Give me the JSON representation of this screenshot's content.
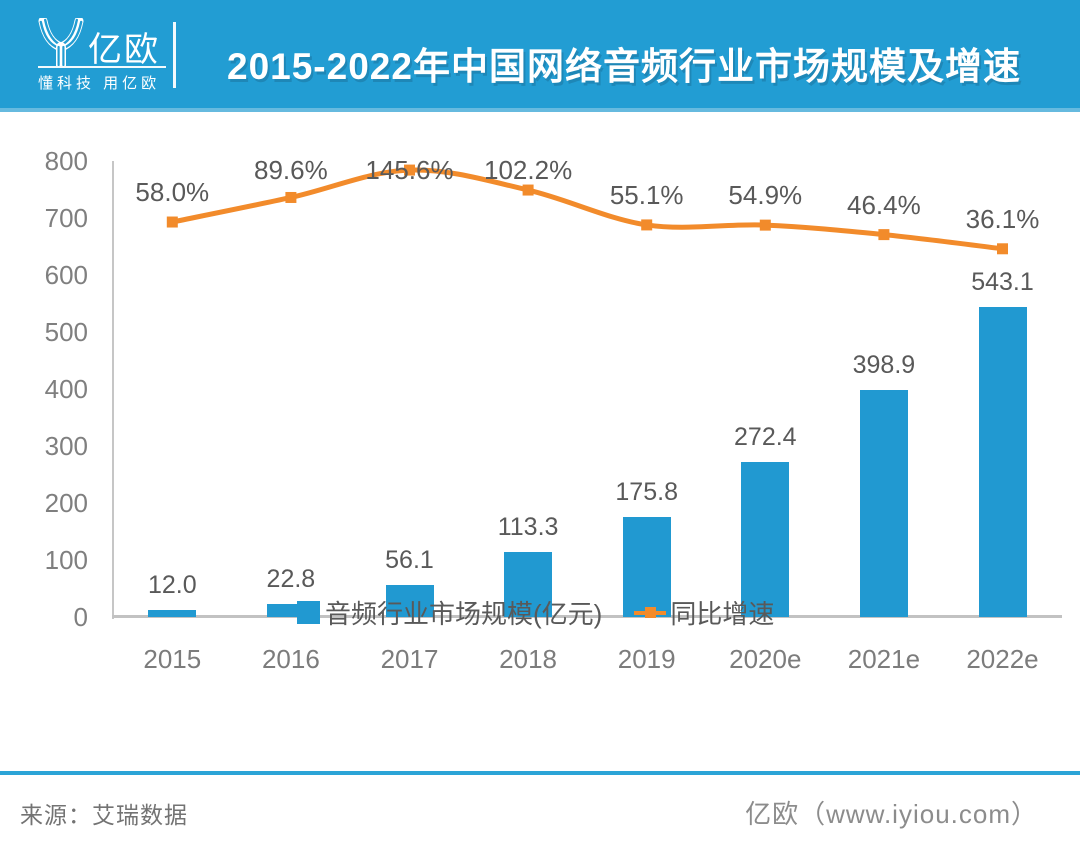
{
  "header": {
    "logo_name": "亿欧",
    "logo_tagline": "懂科技 用亿欧",
    "title": "2015-2022年中国网络音频行业市场规模及增速"
  },
  "chart_data": {
    "type": "bar",
    "combo": "bar+line",
    "title": "2015-2022年中国网络音频行业市场规模及增速",
    "categories": [
      "2015",
      "2016",
      "2017",
      "2018",
      "2019",
      "2020e",
      "2021e",
      "2022e"
    ],
    "series": [
      {
        "name": "音频行业市场规模(亿元)",
        "type": "bar",
        "values": [
          12.0,
          22.8,
          56.1,
          113.3,
          175.8,
          272.4,
          398.9,
          543.1
        ],
        "labels": [
          "12.0",
          "22.8",
          "56.1",
          "113.3",
          "175.8",
          "272.4",
          "398.9",
          "543.1"
        ],
        "color": "#2199D1",
        "axis": "left"
      },
      {
        "name": "同比增速",
        "type": "line",
        "values": [
          58.0,
          89.6,
          145.6,
          102.2,
          55.1,
          54.9,
          46.4,
          36.1
        ],
        "labels": [
          "58.0%",
          "89.6%",
          "145.6%",
          "102.2%",
          "55.1%",
          "54.9%",
          "46.4%",
          "36.1%"
        ],
        "color": "#F28B2B",
        "axis": "right-hidden"
      }
    ],
    "xlabel": "",
    "ylabel": "",
    "ylim": [
      0,
      800
    ],
    "y_ticks": [
      0,
      100,
      200,
      300,
      400,
      500,
      600,
      700,
      800
    ],
    "grid": false,
    "legend_position": "bottom"
  },
  "legend": {
    "items": [
      {
        "label": "音频行业市场规模(亿元)",
        "color": "#2199D1",
        "marker": "square"
      },
      {
        "label": "同比增速",
        "color": "#F28B2B",
        "marker": "line-square"
      }
    ]
  },
  "footer": {
    "source": "来源：艾瑞数据",
    "credit": "亿欧（www.iyiou.com）"
  },
  "colors": {
    "brand_teal": "#229DD3",
    "bar_blue": "#2199D1",
    "line_orange": "#F28B2B",
    "data_label_gray": "#595959",
    "axis_label_gray": "#7F7F7F",
    "axis_line_gray": "#C6C6C6"
  }
}
